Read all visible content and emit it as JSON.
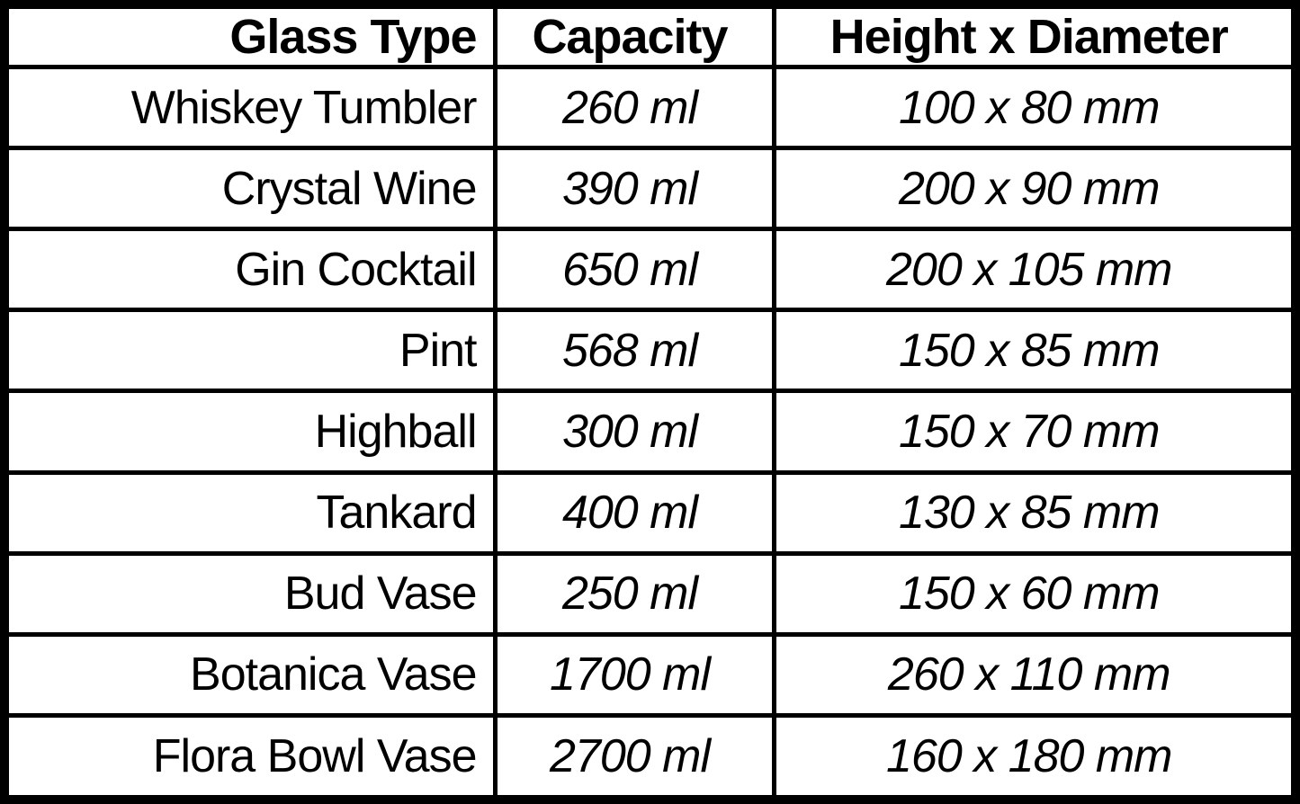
{
  "colors": {
    "border": "#000000",
    "background": "#ffffff",
    "text": "#000000"
  },
  "chart_data": {
    "type": "table",
    "columns": [
      "Glass Type",
      "Capacity",
      "Height x Diameter"
    ],
    "rows": [
      [
        "Whiskey Tumbler",
        "260 ml",
        "100 x 80 mm"
      ],
      [
        "Crystal Wine",
        "390 ml",
        "200 x 90 mm"
      ],
      [
        "Gin Cocktail",
        "650 ml",
        "200 x 105 mm"
      ],
      [
        "Pint",
        "568 ml",
        "150 x 85 mm"
      ],
      [
        "Highball",
        "300 ml",
        "150 x 70 mm"
      ],
      [
        "Tankard",
        "400 ml",
        "130 x 85 mm"
      ],
      [
        "Bud Vase",
        "250 ml",
        "150 x 60 mm"
      ],
      [
        "Botanica Vase",
        "1700 ml",
        "260 x 110 mm"
      ],
      [
        "Flora Bowl Vase",
        "2700 ml",
        "160 x 180 mm"
      ]
    ]
  }
}
